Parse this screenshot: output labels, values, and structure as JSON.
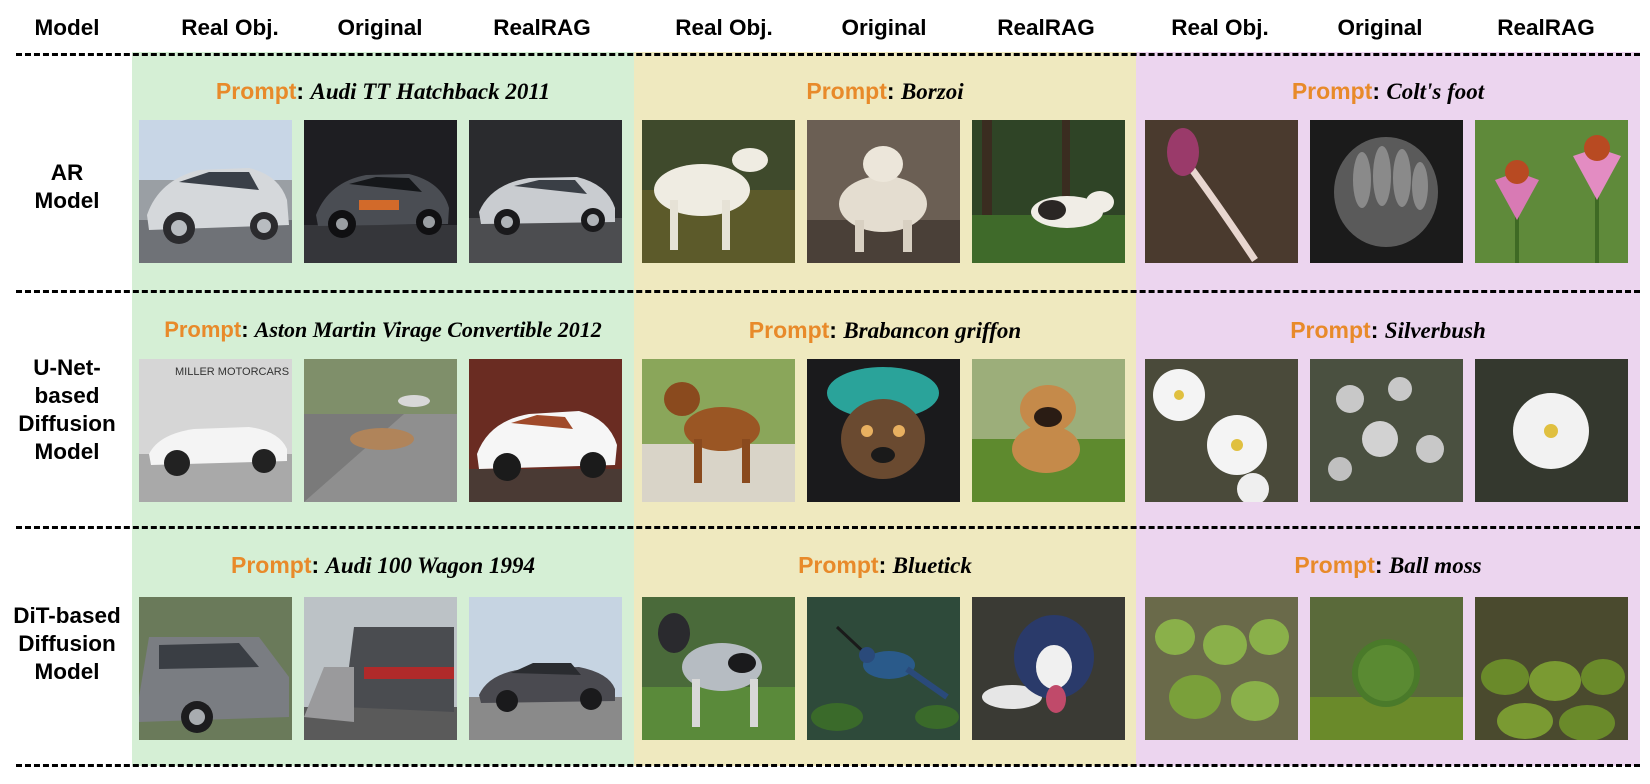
{
  "header": {
    "model": "Model",
    "groups": [
      {
        "real": "Real Obj.",
        "original": "Original",
        "realrag": "RealRAG"
      },
      {
        "real": "Real Obj.",
        "original": "Original",
        "realrag": "RealRAG"
      },
      {
        "real": "Real Obj.",
        "original": "Original",
        "realrag": "RealRAG"
      }
    ]
  },
  "prompt_keyword": "Prompt",
  "rows": [
    {
      "label_lines": [
        "AR",
        "Model"
      ],
      "prompts": [
        "Audi TT Hatchback 2011",
        "Borzoi",
        "Colt's foot"
      ]
    },
    {
      "label_lines": [
        "U-Net-",
        "based",
        "Diffusion",
        "Model"
      ],
      "prompts": [
        "Aston Martin Virage Convertible 2012",
        "Brabancon griffon",
        "Silverbush"
      ]
    },
    {
      "label_lines": [
        "DiT-based",
        "Diffusion",
        "Model"
      ],
      "prompts": [
        "Audi 100 Wagon 1994",
        "Bluetick",
        "Ball moss"
      ]
    }
  ],
  "thumb_text": {
    "dealer_sign": "MILLER MOTORCARS"
  },
  "colors": {
    "prompt_keyword": "#e88a2a",
    "group_cars_bg": "#d5efd5",
    "group_dogs_bg": "#efe9bf",
    "group_plants_bg": "#ecd5ef"
  }
}
